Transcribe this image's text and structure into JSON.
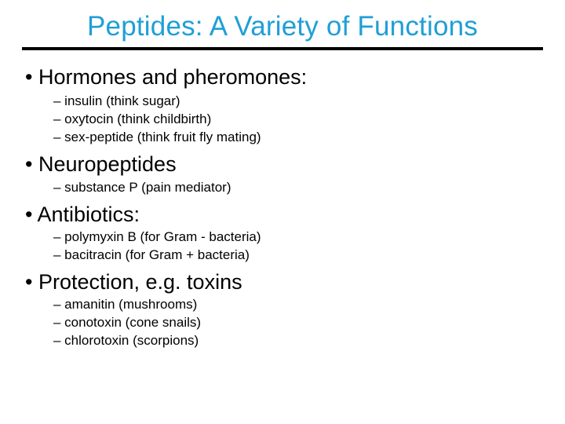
{
  "slide": {
    "title": "Peptides: A Variety of Functions",
    "title_color": "#1f9fd6",
    "title_fontsize": 35,
    "divider_color": "#000000",
    "divider_height": 4,
    "background_color": "#ffffff",
    "body_color": "#000000",
    "main_fontsize": 27,
    "sub_fontsize": 17,
    "sections": [
      {
        "heading": "• Hormones and pheromones:",
        "items": [
          "– insulin (think sugar)",
          "– oxytocin (think childbirth)",
          "– sex-peptide (think fruit fly mating)"
        ]
      },
      {
        "heading": "• Neuropeptides",
        "items": [
          "– substance P (pain mediator)"
        ]
      },
      {
        "heading": "• Antibiotics:",
        "items": [
          "– polymyxin B (for Gram - bacteria)",
          "– bacitracin (for Gram + bacteria)"
        ]
      },
      {
        "heading": "• Protection, e.g. toxins",
        "items": [
          "– amanitin (mushrooms)",
          "– conotoxin (cone snails)",
          "– chlorotoxin (scorpions)"
        ]
      }
    ]
  }
}
